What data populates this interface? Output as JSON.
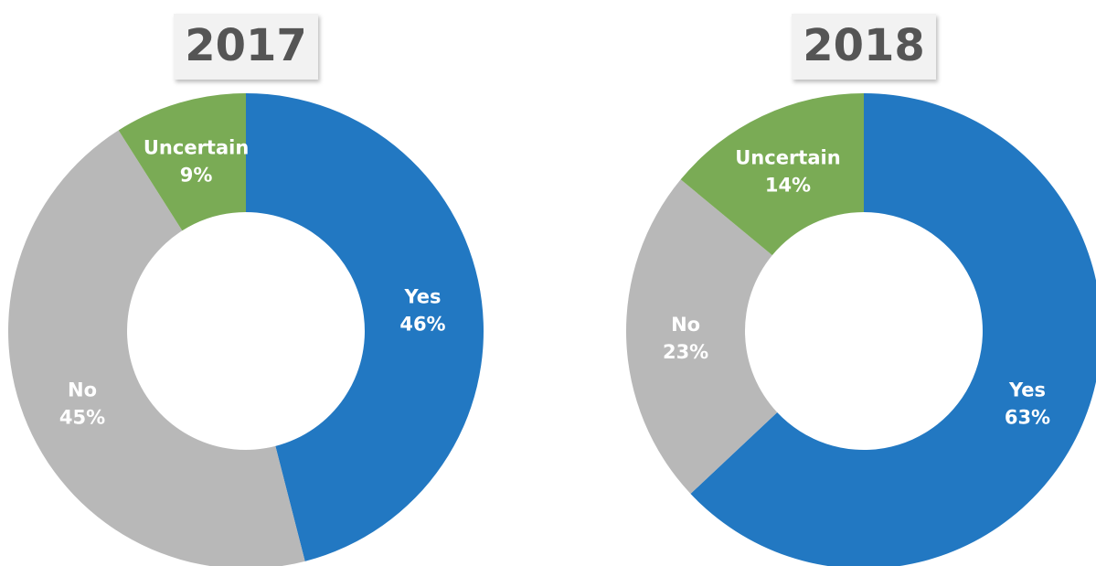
{
  "chart_data": [
    {
      "type": "donut",
      "title": "2017",
      "categories": [
        "Yes",
        "No",
        "Uncertain"
      ],
      "values": [
        46,
        45,
        9
      ],
      "value_labels": [
        "46%",
        "45%",
        "9%"
      ],
      "colors": [
        "#2278c2",
        "#b8b8b8",
        "#7aab55"
      ]
    },
    {
      "type": "donut",
      "title": "2018",
      "categories": [
        "Yes",
        "No",
        "Uncertain"
      ],
      "values": [
        63,
        23,
        14
      ],
      "value_labels": [
        "63%",
        "23%",
        "14%"
      ],
      "colors": [
        "#2278c2",
        "#b8b8b8",
        "#7aab55"
      ]
    }
  ]
}
